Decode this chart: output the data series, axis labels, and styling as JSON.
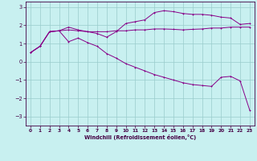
{
  "xlabel": "Windchill (Refroidissement éolien,°C)",
  "bg_color": "#c8f0f0",
  "grid_color": "#99cccc",
  "line_color": "#880088",
  "axis_color": "#440044",
  "xlim": [
    -0.5,
    23.5
  ],
  "ylim": [
    -3.5,
    3.3
  ],
  "xticks": [
    0,
    1,
    2,
    3,
    4,
    5,
    6,
    7,
    8,
    9,
    10,
    11,
    12,
    13,
    14,
    15,
    16,
    17,
    18,
    19,
    20,
    21,
    22,
    23
  ],
  "yticks": [
    -3,
    -2,
    -1,
    0,
    1,
    2,
    3
  ],
  "line1_x": [
    0,
    1,
    2,
    3,
    4,
    5,
    6,
    7,
    8,
    9,
    10,
    11,
    12,
    13,
    14,
    15,
    16,
    17,
    18,
    19,
    20,
    21,
    22,
    23
  ],
  "line1_y": [
    0.5,
    0.85,
    1.65,
    1.7,
    1.75,
    1.7,
    1.65,
    1.65,
    1.65,
    1.7,
    1.7,
    1.75,
    1.75,
    1.8,
    1.8,
    1.78,
    1.75,
    1.78,
    1.8,
    1.85,
    1.85,
    1.9,
    1.9,
    1.9
  ],
  "line2_x": [
    0,
    1,
    2,
    3,
    4,
    5,
    6,
    7,
    8,
    9,
    10,
    11,
    12,
    13,
    14,
    15,
    16,
    17,
    18,
    19,
    20,
    21,
    22,
    23
  ],
  "line2_y": [
    0.5,
    0.85,
    1.65,
    1.7,
    1.9,
    1.75,
    1.65,
    1.55,
    1.35,
    1.65,
    2.1,
    2.2,
    2.3,
    2.7,
    2.8,
    2.75,
    2.65,
    2.6,
    2.6,
    2.55,
    2.45,
    2.4,
    2.05,
    2.1
  ],
  "line3_x": [
    0,
    1,
    2,
    3,
    4,
    5,
    6,
    7,
    8,
    9,
    10,
    11,
    12,
    13,
    14,
    15,
    16,
    17,
    18,
    19,
    20,
    21,
    22,
    23
  ],
  "line3_y": [
    0.5,
    0.85,
    1.65,
    1.7,
    1.1,
    1.3,
    1.05,
    0.85,
    0.45,
    0.2,
    -0.1,
    -0.3,
    -0.5,
    -0.7,
    -0.85,
    -1.0,
    -1.15,
    -1.25,
    -1.3,
    -1.35,
    -0.85,
    -0.8,
    -1.05,
    -2.65
  ]
}
